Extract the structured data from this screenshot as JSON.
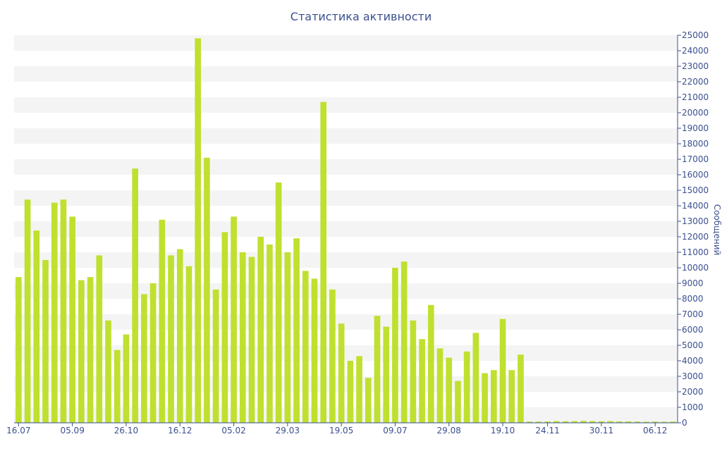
{
  "chart_data": {
    "type": "bar",
    "title": "Статистика активности",
    "xlabel": "",
    "ylabel": "Сообщений",
    "ylim": [
      0,
      25000
    ],
    "yticks": [
      0,
      1000,
      2000,
      3000,
      4000,
      5000,
      6000,
      7000,
      8000,
      9000,
      10000,
      11000,
      12000,
      13000,
      14000,
      15000,
      16000,
      17000,
      18000,
      19000,
      20000,
      21000,
      22000,
      23000,
      24000,
      25000
    ],
    "x_tick_labels": [
      {
        "label": "16.07",
        "index": 0
      },
      {
        "label": "05.09",
        "index": 6
      },
      {
        "label": "26.10",
        "index": 12
      },
      {
        "label": "16.12",
        "index": 18
      },
      {
        "label": "05.02",
        "index": 24
      },
      {
        "label": "29.03",
        "index": 30
      },
      {
        "label": "19.05",
        "index": 36
      },
      {
        "label": "09.07",
        "index": 42
      },
      {
        "label": "29.08",
        "index": 48
      },
      {
        "label": "19.10",
        "index": 54
      },
      {
        "label": "24.11",
        "index": 59
      },
      {
        "label": "30.11",
        "index": 65
      },
      {
        "label": "06.12",
        "index": 71
      }
    ],
    "values": [
      9400,
      14400,
      12400,
      10500,
      14200,
      14400,
      13300,
      9200,
      9400,
      10800,
      6600,
      4700,
      5700,
      16400,
      8300,
      9000,
      13100,
      10800,
      11200,
      10100,
      24800,
      17100,
      8600,
      12300,
      13300,
      11000,
      10700,
      12000,
      11500,
      15500,
      11000,
      11900,
      9800,
      9300,
      20700,
      8600,
      6400,
      4000,
      4300,
      2900,
      6900,
      6200,
      10000,
      10400,
      6600,
      5400,
      7600,
      4800,
      4200,
      2700,
      4600,
      5800,
      3200,
      3400,
      6700,
      3400,
      4400,
      80,
      80,
      90,
      110,
      100,
      110,
      130,
      110,
      100,
      110,
      90,
      90,
      80,
      70,
      80,
      70,
      80
    ],
    "bar_color": "#bfe02f",
    "stripe_color": "#f4f4f4",
    "axis_color": "#3b4f8e",
    "grid": "alternating horizontal bands",
    "legend": "none"
  }
}
